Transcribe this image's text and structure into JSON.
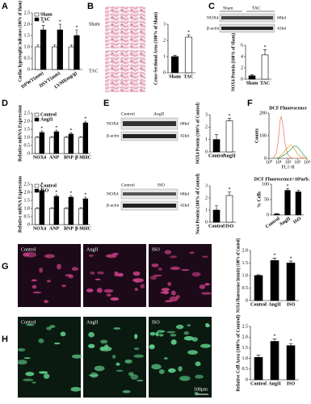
{
  "chart_data": [
    {
      "type": "bar",
      "ylabel": "Cardiac hypertrophic indicators (100% of Sham)",
      "categories": [
        "DPWT(mm)",
        "DSVT(mm)",
        "LVMI(mg/g)"
      ],
      "series": [
        {
          "name": "Sham",
          "color": "#ffffff",
          "values": [
            1,
            1,
            1
          ],
          "errors": [
            0.08,
            0.08,
            0.08
          ]
        },
        {
          "name": "TAC",
          "color": "#000000",
          "values": [
            1.75,
            1.75,
            1.5
          ],
          "errors": [
            0.2,
            0.25,
            0.25
          ],
          "markers": [
            "*",
            "*",
            "*"
          ]
        }
      ],
      "ylim": [
        0,
        2.5
      ],
      "yticks": [
        0,
        0.5,
        {
          "value": 1,
          "label": "1.0"
        },
        1.5,
        {
          "value": 2,
          "label": "2.0"
        },
        2.5
      ]
    },
    {
      "type": "bar",
      "ylabel": "Cross-Sectional Area (100% of Sham)",
      "categories": [
        "Sham",
        "TAC"
      ],
      "values": [
        1,
        2.2
      ],
      "errors": [
        0.08,
        0.15
      ],
      "colors": [
        "#000000",
        "#ffffff"
      ],
      "markers": [
        null,
        "*"
      ],
      "ylim": [
        0,
        3
      ],
      "yticks": [
        0,
        1,
        2,
        3
      ]
    },
    {
      "type": "bar",
      "ylabel": "NOX4 Protein (100% of Sham)",
      "categories": [
        "Sham",
        "TAC"
      ],
      "values": [
        0.6,
        4.3
      ],
      "errors": [
        0.2,
        0.9
      ],
      "colors": [
        "#000000",
        "#ffffff"
      ],
      "markers": [
        null,
        "*"
      ],
      "ylim": [
        0,
        6
      ],
      "yticks": [
        0,
        2,
        4,
        6
      ]
    },
    {
      "type": "bar",
      "ylabel": "Relative mRNA Expression",
      "categories": [
        "NOX4",
        "ANP",
        "BNP",
        "β-MHC"
      ],
      "series": [
        {
          "name": "Control",
          "color": "#ffffff",
          "values": [
            1,
            1,
            1,
            1
          ],
          "errors": [
            0.05,
            0.05,
            0.05,
            0.05
          ]
        },
        {
          "name": "AngII",
          "color": "#000000",
          "values": [
            1.3,
            1.35,
            1.2,
            1.9
          ],
          "errors": [
            0.1,
            0.1,
            0.08,
            0.1
          ],
          "markers": [
            "*",
            "*",
            "*",
            "*"
          ]
        }
      ],
      "ylim": [
        0,
        2.5
      ],
      "yticks": [
        0,
        0.5,
        {
          "value": 1,
          "label": "1.0"
        },
        1.5,
        {
          "value": 2,
          "label": "2.0"
        },
        2.5
      ]
    },
    {
      "type": "bar",
      "ylabel": "Relative mRNA Expression",
      "categories": [
        "NOX4",
        "ANP",
        "BNP",
        "β-MHC"
      ],
      "series": [
        {
          "name": "Control",
          "color": "#ffffff",
          "values": [
            1,
            1,
            1,
            1
          ],
          "errors": [
            0.05,
            0.05,
            0.05,
            0.05
          ]
        },
        {
          "name": "ISO",
          "color": "#000000",
          "values": [
            2.1,
            1.75,
            1.7,
            1.6
          ],
          "errors": [
            0.25,
            0.1,
            0.1,
            0.1
          ],
          "markers": [
            "*",
            "*",
            "*",
            "*"
          ]
        }
      ],
      "ylim": [
        0,
        2.5
      ],
      "yticks": [
        0,
        0.5,
        {
          "value": 1,
          "label": "1.0"
        },
        1.5,
        {
          "value": 2,
          "label": "2.0"
        },
        2.5
      ]
    },
    {
      "type": "bar",
      "ylabel": "NOX4 Protein (100% of Control)",
      "categories": [
        "Control",
        "AngII"
      ],
      "values": [
        1,
        2.5
      ],
      "errors": [
        0.4,
        0.2
      ],
      "colors": [
        "#000000",
        "#ffffff"
      ],
      "markers": [
        null,
        "*"
      ],
      "ylim": [
        0,
        3
      ],
      "yticks": [
        0,
        1,
        2,
        3
      ]
    },
    {
      "type": "bar",
      "ylabel": "Nox4 Protein (100% of Control)",
      "categories": [
        "Control",
        "ISO"
      ],
      "values": [
        1,
        2.2
      ],
      "errors": [
        0.35,
        0.3
      ],
      "colors": [
        "#000000",
        "#ffffff"
      ],
      "markers": [
        null,
        "*"
      ],
      "ylim": [
        0,
        3
      ],
      "yticks": [
        0,
        1,
        2,
        3
      ]
    },
    {
      "type": "line",
      "title": "DCF Fluorescence",
      "xlabel": "FL1-H",
      "ylabel": "Counts",
      "log_x": true,
      "x": [
        1,
        3,
        6,
        10,
        15,
        20,
        30,
        50,
        100,
        200,
        300,
        500,
        1000,
        2000,
        5000,
        10000
      ],
      "series": [
        {
          "color": "#e8806a",
          "values": [
            0,
            2,
            20,
            90,
            170,
            185,
            140,
            60,
            15,
            3,
            1,
            0,
            0,
            0,
            0,
            0
          ]
        },
        {
          "color": "#f0a030",
          "values": [
            0,
            0,
            1,
            4,
            10,
            15,
            22,
            35,
            50,
            60,
            55,
            40,
            20,
            8,
            2,
            0
          ]
        },
        {
          "color": "#4aa870",
          "values": [
            0,
            0,
            0,
            2,
            5,
            8,
            12,
            18,
            28,
            40,
            48,
            55,
            50,
            35,
            12,
            2
          ]
        }
      ],
      "xlim": [
        1,
        10000
      ],
      "xticks": [
        {
          "value": 1,
          "label": "10⁰"
        },
        {
          "value": 10,
          "label": "10¹"
        },
        {
          "value": 100,
          "label": "10²"
        },
        {
          "value": 1000,
          "label": "10³"
        },
        {
          "value": 10000,
          "label": "10⁴"
        }
      ],
      "ylim": [
        0,
        200
      ],
      "yticks": [
        0,
        100,
        200
      ]
    },
    {
      "type": "bar",
      "title": "DCF Fluorescence>10⁴arb. units",
      "ylabel": "% Cells",
      "categories": [
        "Control",
        "AngII",
        "ISO"
      ],
      "values": [
        3,
        80,
        75
      ],
      "errors": [
        1,
        5,
        5
      ],
      "colors": [
        "#000000",
        "#000000",
        "#000000"
      ],
      "markers": [
        null,
        "*",
        null
      ],
      "ylim": [
        0,
        100
      ],
      "yticks": [
        0,
        50,
        100
      ]
    },
    {
      "type": "bar",
      "ylabel": "NOX4 Fluorescence Intensity (100% of Control)",
      "categories": [
        "Control",
        "AngII",
        "ISO"
      ],
      "values": [
        1,
        1.6,
        1.5
      ],
      "errors": [
        0.03,
        0.1,
        0.08
      ],
      "colors": [
        "#000000",
        "#000000",
        "#000000"
      ],
      "markers": [
        null,
        "*",
        "*"
      ],
      "ylim": [
        0,
        2
      ],
      "yticks": [
        0,
        0.5,
        {
          "value": 1,
          "label": "1.0"
        },
        1.5,
        {
          "value": 2,
          "label": "2.0"
        }
      ]
    },
    {
      "type": "bar",
      "ylabel": "Relative Cell Area (100% of Control)",
      "categories": [
        "Control",
        "AngII",
        "ISO"
      ],
      "values": [
        1.05,
        1.8,
        1.6
      ],
      "errors": [
        0.1,
        0.12,
        0.1
      ],
      "colors": [
        "#000000",
        "#000000",
        "#000000"
      ],
      "markers": [
        null,
        "*",
        "*"
      ],
      "ylim": [
        0,
        2.5
      ],
      "yticks": [
        0,
        0.5,
        {
          "value": 1,
          "label": "1.0"
        },
        1.5,
        {
          "value": 2,
          "label": "2.0"
        },
        2.5
      ]
    }
  ],
  "figure": {
    "panels": [
      "A",
      "B",
      "C",
      "D",
      "E",
      "F",
      "G",
      "H"
    ],
    "b_images": [
      "Sham",
      "TAC"
    ],
    "c_blot": {
      "lanes": [
        "Sham",
        "TAC"
      ],
      "rows": [
        "NOX4",
        "β-actin"
      ],
      "sizes": [
        "68kd",
        "42kd"
      ]
    },
    "e_top_blot": {
      "lanes": [
        "Control",
        "AngII"
      ],
      "rows": [
        "NOX4",
        "β-actin"
      ],
      "sizes": [
        "68kd",
        "42kd"
      ]
    },
    "e_bottom_blot": {
      "lanes": [
        "Control",
        "ISO"
      ],
      "rows": [
        "NOX4",
        "β-actin"
      ],
      "sizes": [
        "68kd",
        "42kd"
      ]
    },
    "g_images": [
      "Control",
      "AngII",
      "ISO"
    ],
    "h_images": [
      "Control",
      "AngII",
      "ISO"
    ],
    "scale_bar": "100μm"
  }
}
